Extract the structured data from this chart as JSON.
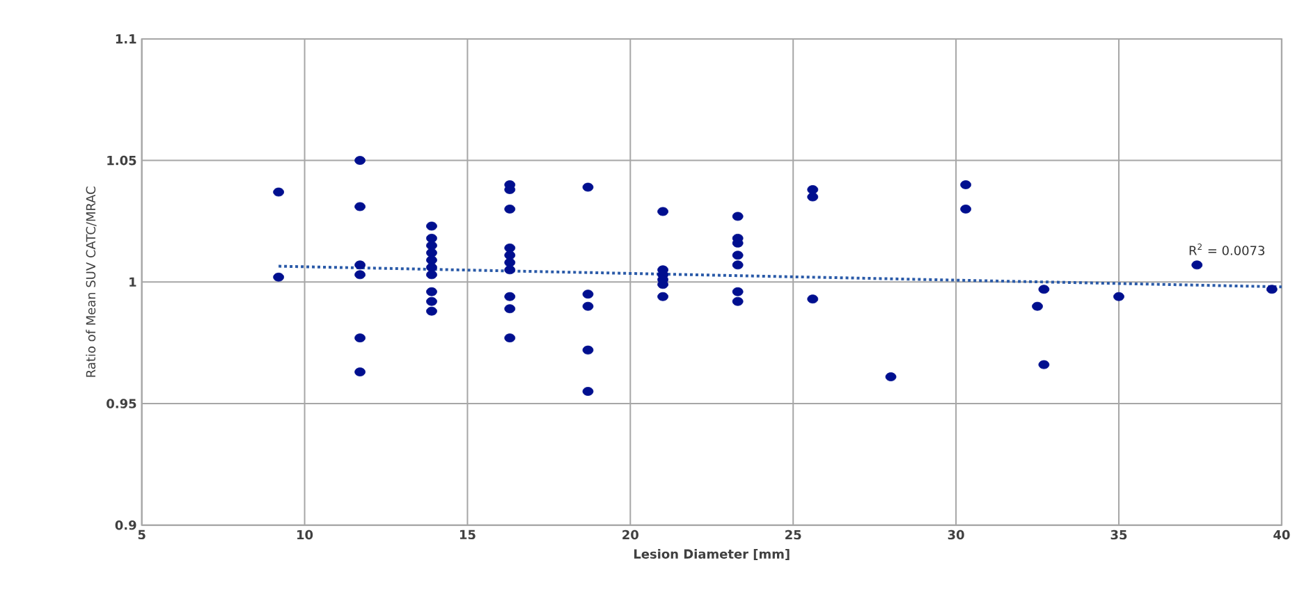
{
  "chart_data": {
    "type": "scatter",
    "xlabel": "Lesion Diameter [mm]",
    "ylabel": "Ratio of Mean SUV CATC/MRAC",
    "xlim": [
      5,
      40
    ],
    "ylim": [
      0.9,
      1.1
    ],
    "xticks": [
      5,
      10,
      15,
      20,
      25,
      30,
      35,
      40
    ],
    "yticks": [
      0.9,
      0.95,
      1,
      1.05,
      1.1
    ],
    "grid": true,
    "annotations": [
      "R$^{2}$ = 0.0073"
    ],
    "series": [
      {
        "type": "scatter",
        "marker": "circle",
        "color": "#000f8f",
        "x": [
          9.2,
          9.2,
          11.7,
          11.7,
          11.7,
          11.7,
          11.7,
          11.7,
          13.9,
          13.9,
          13.9,
          13.9,
          13.9,
          13.9,
          13.9,
          13.9,
          13.9,
          13.9,
          16.3,
          16.3,
          16.3,
          16.3,
          16.3,
          16.3,
          16.3,
          16.3,
          16.3,
          16.3,
          18.7,
          18.7,
          18.7,
          18.7,
          18.7,
          21,
          21,
          21,
          21,
          21,
          21,
          23.3,
          23.3,
          23.3,
          23.3,
          23.3,
          23.3,
          23.3,
          25.6,
          25.6,
          25.6,
          28,
          30.3,
          30.3,
          32.5,
          32.7,
          32.7,
          35,
          37.4,
          39.7
        ],
        "values": [
          1.037,
          1.002,
          1.05,
          1.031,
          1.007,
          1.003,
          0.977,
          0.963,
          1.023,
          1.018,
          1.015,
          1.012,
          1.009,
          1.006,
          1.003,
          0.996,
          0.992,
          0.988,
          1.04,
          1.038,
          1.03,
          1.014,
          1.011,
          1.008,
          1.005,
          0.994,
          0.989,
          0.977,
          1.039,
          0.995,
          0.99,
          0.972,
          0.955,
          1.029,
          1.005,
          1.003,
          1.001,
          0.999,
          0.994,
          1.027,
          1.018,
          1.016,
          1.011,
          1.007,
          0.996,
          0.992,
          1.038,
          1.035,
          0.993,
          0.961,
          1.04,
          1.03,
          0.99,
          0.997,
          0.966,
          0.994,
          1.007,
          0.997
        ]
      },
      {
        "type": "line",
        "color": "#2a5aa8",
        "line_style": "dotted",
        "marker": "none",
        "x": [
          9.2,
          40
        ],
        "values": [
          1.0065,
          0.998
        ]
      }
    ]
  }
}
